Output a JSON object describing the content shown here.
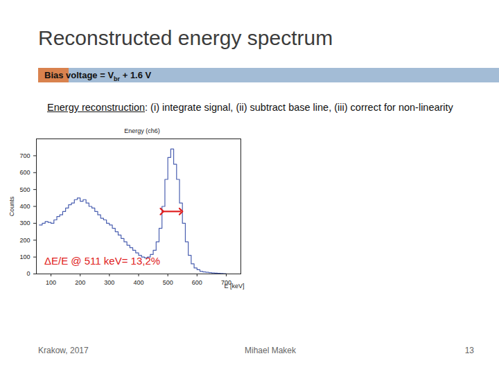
{
  "page": {
    "title": "Reconstructed energy spectrum",
    "banner": {
      "text": "Bias voltage = V",
      "subscript": "br",
      "after": " + 1.6 V"
    },
    "description": {
      "heading": "Energy reconstruction",
      "text": ": (i) integrate signal, (ii) subtract base line, (iii) correct for non-linearity"
    },
    "footer": {
      "left": "Krakow, 2017",
      "center": "Mihael Makek",
      "page_number": 13
    }
  },
  "chart_data": {
    "type": "histogram",
    "title": "Energy (ch6)",
    "x_label": "E [keV]",
    "y_label": "Counts",
    "bins": [
      60,
      70,
      80,
      90,
      100,
      110,
      120,
      130,
      140,
      150,
      160,
      170,
      180,
      190,
      200,
      210,
      220,
      230,
      240,
      250,
      260,
      270,
      280,
      290,
      300,
      310,
      320,
      330,
      340,
      350,
      360,
      370,
      380,
      390,
      400,
      410,
      420,
      430,
      440,
      450,
      460,
      470,
      480,
      490,
      500,
      510,
      520,
      530,
      540,
      550,
      560,
      570,
      580,
      590,
      600,
      610,
      620,
      630,
      640,
      650,
      660,
      670,
      680,
      690,
      700
    ],
    "counts": [
      290,
      300,
      310,
      305,
      300,
      320,
      340,
      350,
      370,
      390,
      410,
      420,
      440,
      450,
      430,
      440,
      420,
      400,
      390,
      370,
      350,
      330,
      320,
      300,
      290,
      270,
      250,
      230,
      210,
      190,
      170,
      155,
      140,
      125,
      110,
      100,
      95,
      100,
      115,
      140,
      190,
      270,
      400,
      560,
      690,
      740,
      650,
      560,
      420,
      300,
      190,
      110,
      60,
      35,
      25,
      15,
      12,
      10,
      8,
      6,
      5,
      4,
      3,
      2
    ],
    "color": "#4a5fb0",
    "xlim": [
      50,
      750
    ],
    "xticks": [
      100,
      200,
      300,
      400,
      500,
      600,
      700
    ],
    "ylim": [
      0,
      800
    ],
    "yticks": [
      0,
      100,
      200,
      300,
      400,
      500,
      600,
      700
    ],
    "annotation": {
      "text": "ΔE/E @ 511 keV= 13,2%",
      "color": "#e02020"
    },
    "fwhm": {
      "from": 480,
      "to": 545,
      "counts": 370,
      "color": "#e02020"
    }
  }
}
